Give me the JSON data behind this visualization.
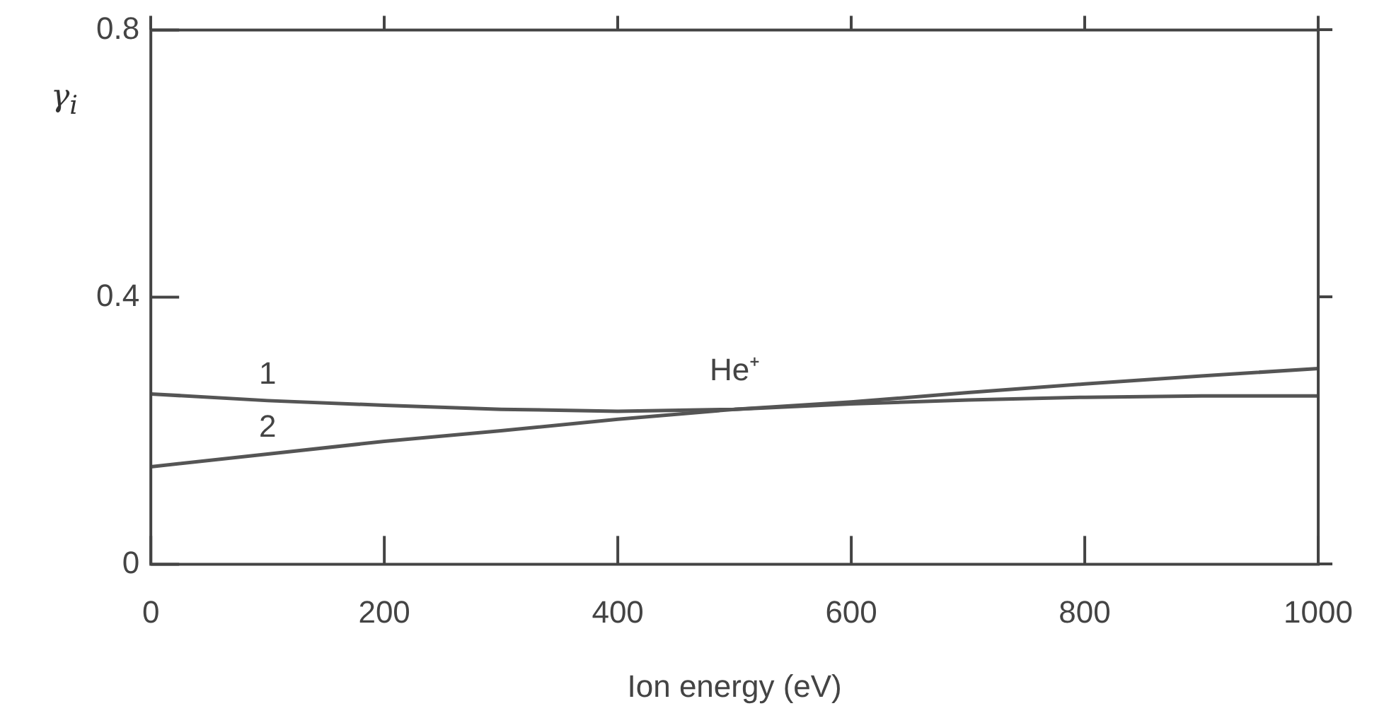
{
  "chart_data": {
    "type": "line",
    "xlabel": "Ion energy (eV)",
    "ylabel": "γ$_{i}$",
    "xlim": [
      0,
      1000
    ],
    "xticks": [
      0,
      200,
      400,
      600,
      800,
      1000
    ],
    "ylim": [
      0,
      0.8
    ],
    "yticks": [
      0,
      0.4,
      0.8
    ],
    "grid": false,
    "legend": false,
    "marker": "none",
    "line_style": "solid",
    "annotations": [
      "He⁺"
    ],
    "series": [
      {
        "name": "1",
        "color": "#555555",
        "x": [
          0,
          100,
          200,
          300,
          400,
          500,
          600,
          700,
          800,
          900,
          1000
        ],
        "values": [
          0.255,
          0.245,
          0.238,
          0.232,
          0.229,
          0.232,
          0.24,
          0.246,
          0.25,
          0.252,
          0.252
        ]
      },
      {
        "name": "2",
        "color": "#555555",
        "x": [
          0,
          100,
          200,
          300,
          400,
          500,
          600,
          700,
          800,
          900,
          1000
        ],
        "values": [
          0.146,
          0.165,
          0.184,
          0.2,
          0.217,
          0.232,
          0.243,
          0.257,
          0.27,
          0.282,
          0.293
        ]
      }
    ]
  }
}
